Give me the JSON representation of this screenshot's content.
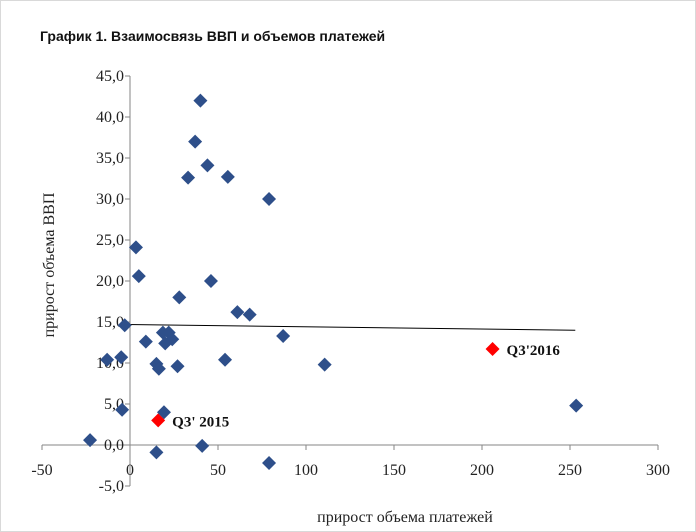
{
  "chart_data": {
    "type": "scatter",
    "title": "График 1. Взаимосвязь ВВП и объемов платежей",
    "x_label": "прирост объема платежей",
    "y_label": "прирост объема ВВП",
    "xlim": [
      -50,
      300
    ],
    "ylim": [
      -5,
      45
    ],
    "xticks": [
      -50,
      0,
      50,
      100,
      150,
      200,
      250,
      300
    ],
    "yticks": [
      {
        "value": -5,
        "label": "-5,0"
      },
      {
        "value": 0,
        "label": "0,0"
      },
      {
        "value": 5,
        "label": "5,0"
      },
      {
        "value": 10,
        "label": "10,0"
      },
      {
        "value": 15,
        "label": "15,0"
      },
      {
        "value": 20,
        "label": "20,0"
      },
      {
        "value": 25,
        "label": "25,0"
      },
      {
        "value": 30,
        "label": "30,0"
      },
      {
        "value": 35,
        "label": "35,0"
      },
      {
        "value": 40,
        "label": "40,0"
      },
      {
        "value": 45,
        "label": "45,0"
      }
    ],
    "color": "#2e4f8a",
    "x": [
      -22.7,
      -13,
      -5,
      -3,
      -4.5,
      3.4,
      5,
      9,
      15,
      16.4,
      18.7,
      20,
      22,
      24,
      19.3,
      15,
      27,
      28,
      33,
      37,
      40,
      44,
      46,
      41,
      55.6,
      54,
      61,
      68,
      79,
      79,
      87,
      110.6,
      253.5
    ],
    "y": [
      0.6,
      10.4,
      10.7,
      14.6,
      4.3,
      24.1,
      20.6,
      12.6,
      9.9,
      9.3,
      13.7,
      12.4,
      13.7,
      12.9,
      4,
      -0.9,
      9.6,
      18,
      32.6,
      37,
      42,
      34.1,
      20,
      -0.1,
      32.7,
      10.4,
      16.2,
      15.9,
      30,
      -2.2,
      13.3,
      9.8,
      4.8
    ],
    "highlights": [
      {
        "x": 16,
        "y": 3,
        "label": "Q3' 2015",
        "color": "#ff0000"
      },
      {
        "x": 206,
        "y": 11.7,
        "label": "Q3'2016",
        "color": "#ff0000"
      }
    ],
    "trendline": {
      "x": [
        -3,
        253
      ],
      "y": [
        14.7,
        14.0
      ],
      "color": "#000000"
    }
  }
}
